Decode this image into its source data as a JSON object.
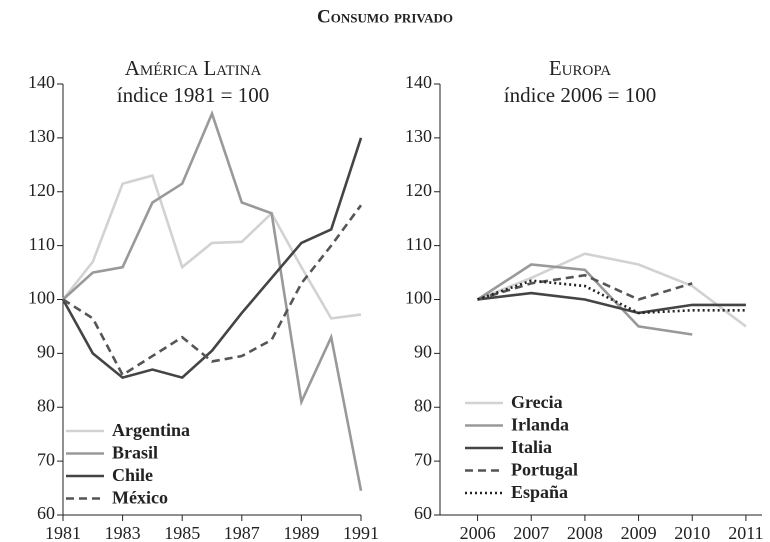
{
  "title": "Consumo privado",
  "chart_data": [
    {
      "type": "line",
      "title": "América Latina",
      "subtitle": "índice 1981 = 100",
      "x": [
        1981,
        1982,
        1983,
        1984,
        1985,
        1986,
        1987,
        1988,
        1989,
        1990,
        1991
      ],
      "xlim": [
        1981,
        1991
      ],
      "xticks": [
        1981,
        1983,
        1985,
        1987,
        1989,
        1991
      ],
      "ylim": [
        60,
        140
      ],
      "yticks": [
        60,
        70,
        80,
        90,
        100,
        110,
        120,
        130,
        140
      ],
      "grid": false,
      "legend": "lower left",
      "series": [
        {
          "name": "Argentina",
          "color": "#d2d2d2",
          "style": "solid",
          "values": [
            100,
            107,
            121.5,
            123,
            106,
            110.5,
            110.7,
            116,
            106,
            96.5,
            97.2
          ]
        },
        {
          "name": "Brasil",
          "color": "#999999",
          "style": "solid",
          "values": [
            100,
            105,
            106,
            118,
            121.5,
            134.5,
            118,
            116,
            81,
            93,
            64.5
          ]
        },
        {
          "name": "Chile",
          "color": "#444444",
          "style": "solid",
          "values": [
            100,
            90,
            85.5,
            87,
            85.5,
            90.5,
            97.5,
            104,
            110.5,
            113,
            130
          ]
        },
        {
          "name": "México",
          "color": "#555555",
          "style": "dashed",
          "values": [
            100,
            96.5,
            86,
            89.5,
            93,
            88.5,
            89.5,
            92.5,
            103,
            110,
            117.5
          ]
        }
      ]
    },
    {
      "type": "line",
      "title": "Europa",
      "subtitle": "índice 2006 = 100",
      "x": [
        2006,
        2007,
        2008,
        2009,
        2010,
        2011
      ],
      "xlim": [
        2005.3,
        2011.3
      ],
      "xticks": [
        2006,
        2007,
        2008,
        2009,
        2010,
        2011
      ],
      "ylim": [
        60,
        140
      ],
      "yticks": [
        60,
        70,
        80,
        90,
        100,
        110,
        120,
        130,
        140
      ],
      "grid": false,
      "legend": "lower left",
      "series": [
        {
          "name": "Grecia",
          "color": "#d2d2d2",
          "style": "solid",
          "values": [
            100,
            104,
            108.5,
            106.5,
            102.5,
            95
          ]
        },
        {
          "name": "Irlanda",
          "color": "#999999",
          "style": "solid",
          "values": [
            100,
            106.5,
            105.5,
            95,
            93.5,
            null
          ]
        },
        {
          "name": "Italia",
          "color": "#444444",
          "style": "solid",
          "values": [
            100,
            101.2,
            100,
            97.5,
            99,
            99
          ]
        },
        {
          "name": "Portugal",
          "color": "#555555",
          "style": "dashed",
          "values": [
            100,
            103,
            104.5,
            100,
            103,
            null
          ]
        },
        {
          "name": "España",
          "color": "#222222",
          "style": "dotted",
          "values": [
            100,
            103.5,
            102.5,
            97.5,
            98,
            98
          ]
        }
      ]
    }
  ]
}
